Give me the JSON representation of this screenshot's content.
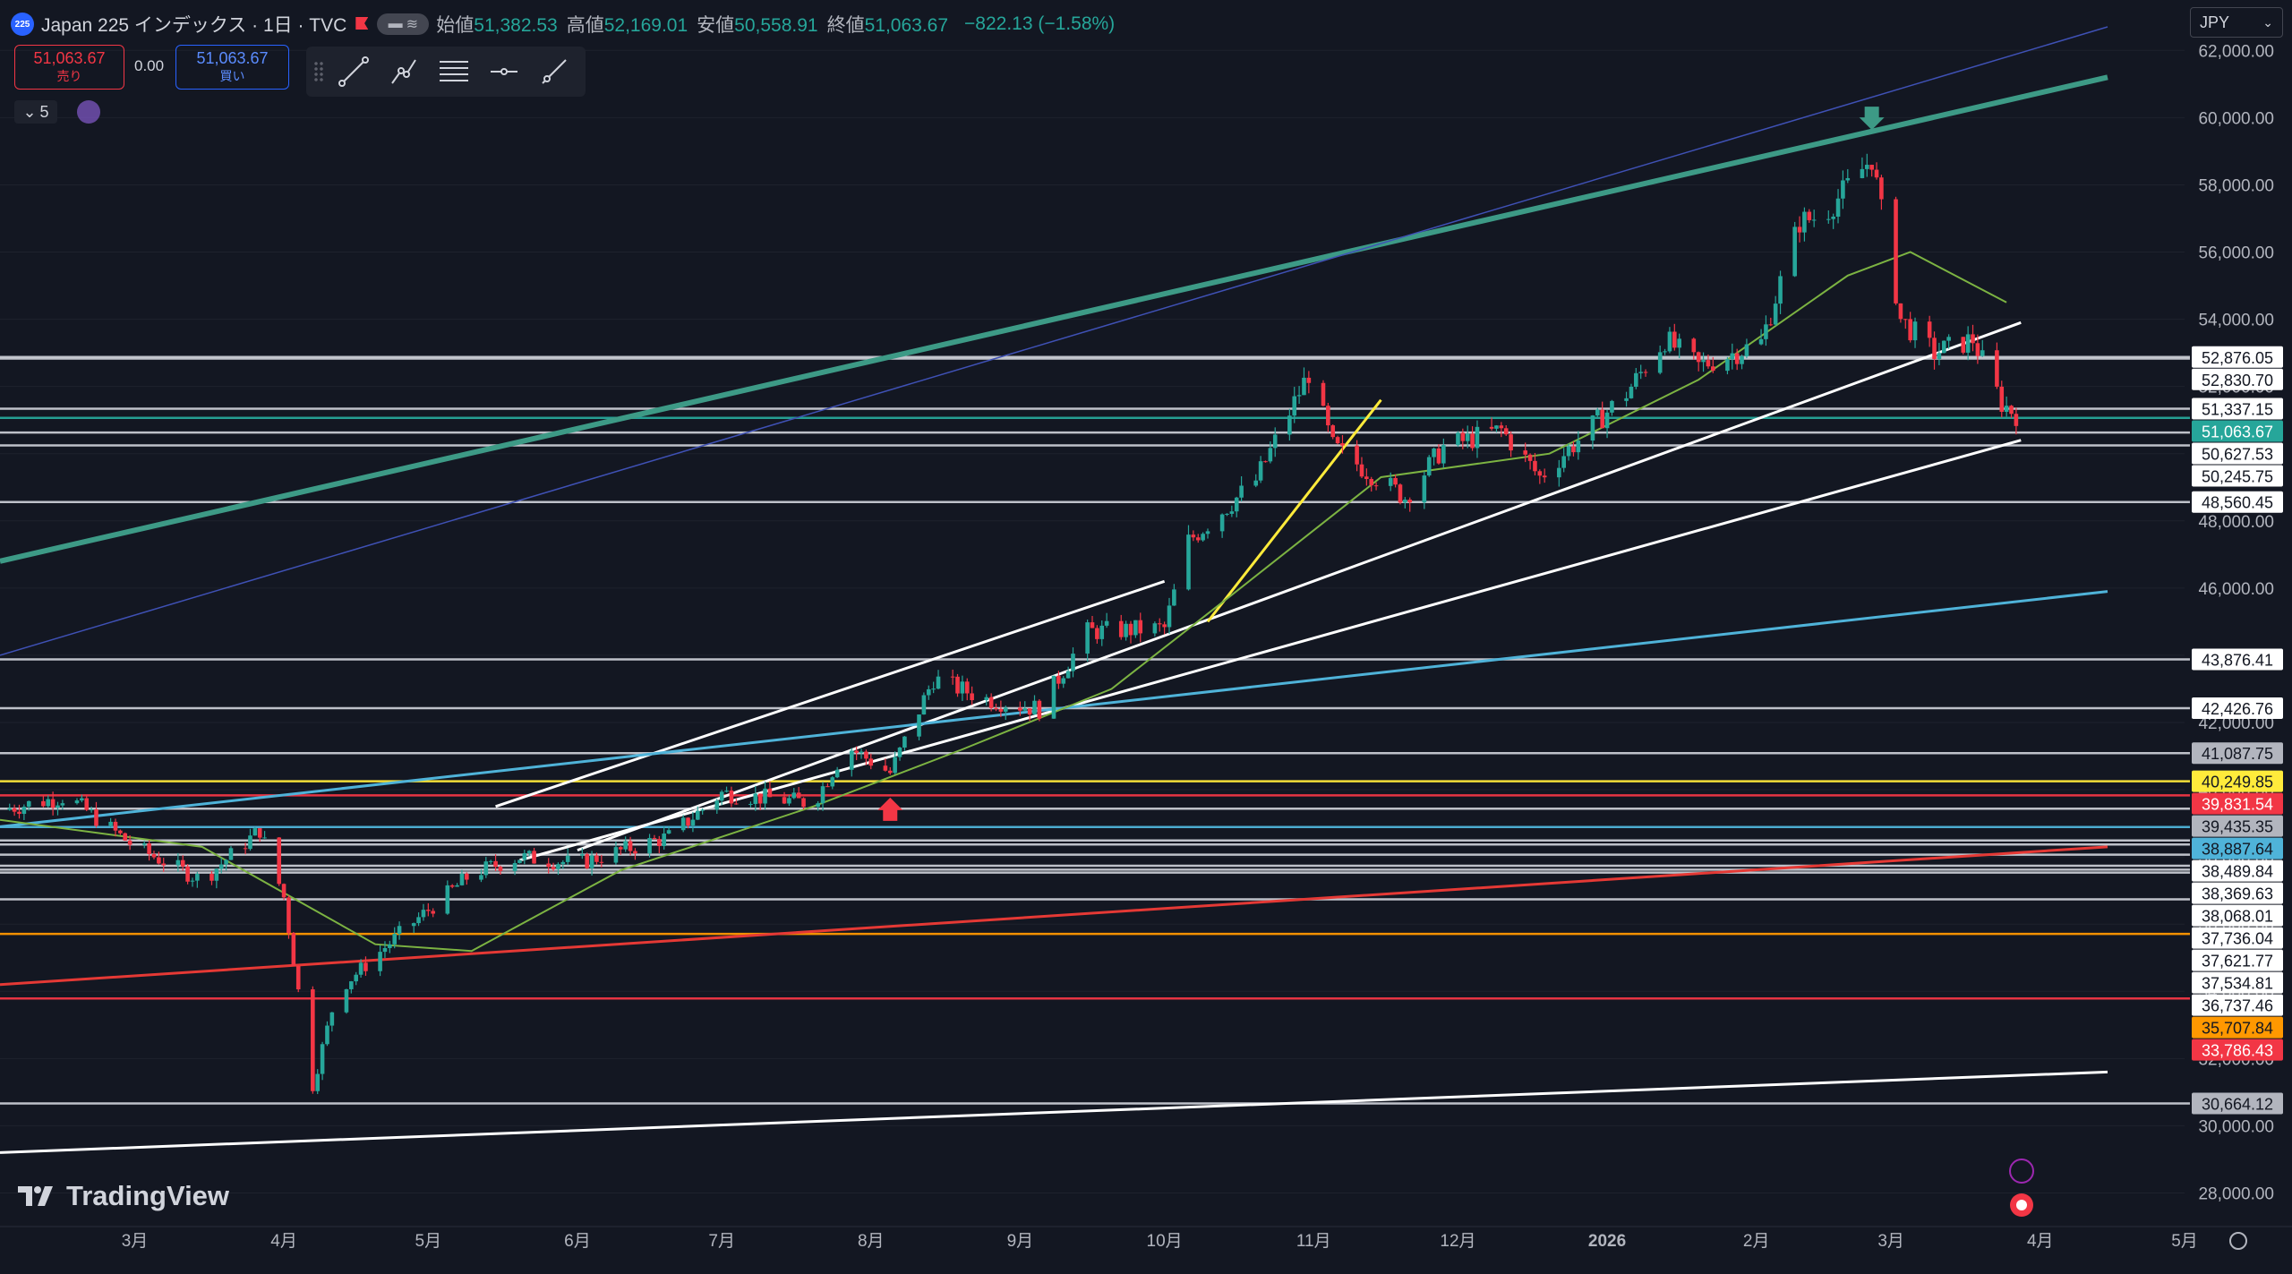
{
  "header": {
    "symbol_badge": "225",
    "title": "Japan 225 インデックス · 1日 · TVC",
    "ohlc": [
      {
        "label": "始値",
        "value": "51,382.53"
      },
      {
        "label": "高値",
        "value": "52,169.01"
      },
      {
        "label": "安値",
        "value": "50,558.91"
      },
      {
        "label": "終値",
        "value": "51,063.67"
      }
    ],
    "change": "−822.13 (−1.58%)"
  },
  "trade": {
    "sell_price": "51,063.67",
    "sell_label": "売り",
    "spread": "0.00",
    "buy_price": "51,063.67",
    "buy_label": "買い"
  },
  "indicator_count": "5",
  "currency": "JPY",
  "logo_text": "TradingView",
  "colors": {
    "background": "#131722",
    "up": "#26a69a",
    "down": "#f23645",
    "ma": "#7cb342",
    "channel": "#3d9a86",
    "trend_blue": "#3f51b5",
    "cyan": "#4fb3d9",
    "red_line": "#e53935",
    "orange": "#ff9800",
    "yellow": "#ffeb3b"
  },
  "chart_data": {
    "type": "candlestick",
    "instrument": "Japan 225 インデックス",
    "interval": "1日",
    "ylim": [
      27000,
      63500
    ],
    "y_ticks": [
      28000,
      30000,
      32000,
      34000,
      36000,
      38000,
      40000,
      42000,
      44000,
      46000,
      48000,
      50000,
      52000,
      54000,
      56000,
      58000,
      60000,
      62000
    ],
    "x_ticks": [
      {
        "label": "3月",
        "date": "2025-03-01"
      },
      {
        "label": "4月",
        "date": "2025-04-01"
      },
      {
        "label": "5月",
        "date": "2025-05-01"
      },
      {
        "label": "6月",
        "date": "2025-06-01"
      },
      {
        "label": "7月",
        "date": "2025-07-01"
      },
      {
        "label": "8月",
        "date": "2025-08-01"
      },
      {
        "label": "9月",
        "date": "2025-09-01"
      },
      {
        "label": "10月",
        "date": "2025-10-01"
      },
      {
        "label": "11月",
        "date": "2025-11-01"
      },
      {
        "label": "12月",
        "date": "2025-12-01"
      },
      {
        "label": "2026",
        "date": "2026-01-01"
      },
      {
        "label": "2月",
        "date": "2026-02-01"
      },
      {
        "label": "3月",
        "date": "2026-03-01"
      },
      {
        "label": "4月",
        "date": "2026-04-01"
      },
      {
        "label": "5月",
        "date": "2026-05-01"
      }
    ],
    "x_range": [
      "2025-02-01",
      "2026-05-01"
    ],
    "price_path": [
      {
        "date": "2025-02-01",
        "close": 39400
      },
      {
        "date": "2025-02-15",
        "close": 39800
      },
      {
        "date": "2025-03-01",
        "close": 38300
      },
      {
        "date": "2025-03-15",
        "close": 37300
      },
      {
        "date": "2025-03-27",
        "close": 38800
      },
      {
        "date": "2025-04-01",
        "close": 36800
      },
      {
        "date": "2025-04-07",
        "close": 31200
      },
      {
        "date": "2025-04-12",
        "close": 34000
      },
      {
        "date": "2025-04-25",
        "close": 35700
      },
      {
        "date": "2025-05-10",
        "close": 37500
      },
      {
        "date": "2025-05-20",
        "close": 38000
      },
      {
        "date": "2025-06-01",
        "close": 37800
      },
      {
        "date": "2025-06-20",
        "close": 38600
      },
      {
        "date": "2025-07-01",
        "close": 39900
      },
      {
        "date": "2025-07-20",
        "close": 39600
      },
      {
        "date": "2025-07-27",
        "close": 41300
      },
      {
        "date": "2025-08-05",
        "close": 40500
      },
      {
        "date": "2025-08-14",
        "close": 43300
      },
      {
        "date": "2025-08-25",
        "close": 42700
      },
      {
        "date": "2025-09-05",
        "close": 42400
      },
      {
        "date": "2025-09-15",
        "close": 44700
      },
      {
        "date": "2025-10-01",
        "close": 44800
      },
      {
        "date": "2025-10-06",
        "close": 47400
      },
      {
        "date": "2025-10-20",
        "close": 49200
      },
      {
        "date": "2025-10-31",
        "close": 52400
      },
      {
        "date": "2025-11-05",
        "close": 50200
      },
      {
        "date": "2025-11-20",
        "close": 48700
      },
      {
        "date": "2025-11-28",
        "close": 50200
      },
      {
        "date": "2025-12-10",
        "close": 50700
      },
      {
        "date": "2025-12-18",
        "close": 49300
      },
      {
        "date": "2026-01-05",
        "close": 51800
      },
      {
        "date": "2026-01-13",
        "close": 53400
      },
      {
        "date": "2026-01-20",
        "close": 52600
      },
      {
        "date": "2026-02-02",
        "close": 53300
      },
      {
        "date": "2026-02-10",
        "close": 56900
      },
      {
        "date": "2026-02-15",
        "close": 57100
      },
      {
        "date": "2026-02-25",
        "close": 58800
      },
      {
        "date": "2026-03-03",
        "close": 54000
      },
      {
        "date": "2026-03-10",
        "close": 53000
      },
      {
        "date": "2026-03-18",
        "close": 53400
      },
      {
        "date": "2026-03-24",
        "close": 51500
      },
      {
        "date": "2026-03-28",
        "close": 51063.67
      }
    ],
    "moving_average": [
      {
        "date": "2025-02-01",
        "value": 39100
      },
      {
        "date": "2025-03-15",
        "value": 38300
      },
      {
        "date": "2025-04-20",
        "value": 35400
      },
      {
        "date": "2025-05-10",
        "value": 35200
      },
      {
        "date": "2025-06-10",
        "value": 37600
      },
      {
        "date": "2025-07-20",
        "value": 39500
      },
      {
        "date": "2025-08-20",
        "value": 41200
      },
      {
        "date": "2025-09-20",
        "value": 43000
      },
      {
        "date": "2025-10-15",
        "value": 45800
      },
      {
        "date": "2025-11-15",
        "value": 49300
      },
      {
        "date": "2025-12-20",
        "value": 50000
      },
      {
        "date": "2026-01-20",
        "value": 52200
      },
      {
        "date": "2026-02-20",
        "value": 55300
      },
      {
        "date": "2026-03-05",
        "value": 56000
      },
      {
        "date": "2026-03-25",
        "value": 54500
      }
    ],
    "horizontal_levels": [
      {
        "value": 52876.05,
        "label": "52,876.05",
        "bg": "#ffffff",
        "fg": "#131722"
      },
      {
        "value": 52830.7,
        "label": "52,830.70",
        "bg": "#ffffff",
        "fg": "#131722"
      },
      {
        "value": 51337.15,
        "label": "51,337.15",
        "bg": "#ffffff",
        "fg": "#131722"
      },
      {
        "value": 51063.67,
        "label": "51,063.67",
        "bg": "#26a69a",
        "fg": "#ffffff"
      },
      {
        "value": 50627.53,
        "label": "50,627.53",
        "bg": "#ffffff",
        "fg": "#131722"
      },
      {
        "value": 50245.75,
        "label": "50,245.75",
        "bg": "#ffffff",
        "fg": "#131722"
      },
      {
        "value": 48560.45,
        "label": "48,560.45",
        "bg": "#ffffff",
        "fg": "#131722"
      },
      {
        "value": 43876.41,
        "label": "43,876.41",
        "bg": "#ffffff",
        "fg": "#131722"
      },
      {
        "value": 42426.76,
        "label": "42,426.76",
        "bg": "#ffffff",
        "fg": "#131722"
      },
      {
        "value": 41087.75,
        "label": "41,087.75",
        "bg": "#b2b5be",
        "fg": "#131722"
      },
      {
        "value": 40249.85,
        "label": "40,249.85",
        "bg": "#ffeb3b",
        "fg": "#131722"
      },
      {
        "value": 39831.54,
        "label": "39,831.54",
        "bg": "#f23645",
        "fg": "#ffffff"
      },
      {
        "value": 39435.35,
        "label": "39,435.35",
        "bg": "#b2b5be",
        "fg": "#131722"
      },
      {
        "value": 38887.64,
        "label": "38,887.64",
        "bg": "#4fb3d9",
        "fg": "#131722"
      },
      {
        "value": 38489.84,
        "label": "38,489.84",
        "bg": "#ffffff",
        "fg": "#131722"
      },
      {
        "value": 38369.63,
        "label": "38,369.63",
        "bg": "#ffffff",
        "fg": "#131722"
      },
      {
        "value": 38068.01,
        "label": "38,068.01",
        "bg": "#ffffff",
        "fg": "#131722"
      },
      {
        "value": 37736.04,
        "label": "37,736.04",
        "bg": "#ffffff",
        "fg": "#131722"
      },
      {
        "value": 37621.77,
        "label": "37,621.77",
        "bg": "#ffffff",
        "fg": "#131722"
      },
      {
        "value": 37534.81,
        "label": "37,534.81",
        "bg": "#ffffff",
        "fg": "#131722"
      },
      {
        "value": 36737.46,
        "label": "36,737.46",
        "bg": "#ffffff",
        "fg": "#131722"
      },
      {
        "value": 35707.84,
        "label": "35,707.84",
        "bg": "#ff9800",
        "fg": "#131722"
      },
      {
        "value": 33786.43,
        "label": "33,786.43",
        "bg": "#f23645",
        "fg": "#ffffff"
      },
      {
        "value": 30664.12,
        "label": "30,664.12",
        "bg": "#b2b5be",
        "fg": "#131722"
      }
    ],
    "trend_lines": [
      {
        "name": "channel-upper",
        "from": {
          "date": "2025-02-01",
          "price": 46800
        },
        "to": {
          "date": "2026-04-15",
          "price": 61200
        },
        "color": "#3d9a86"
      },
      {
        "name": "blue-upper",
        "from": {
          "date": "2025-02-01",
          "price": 44000
        },
        "to": {
          "date": "2026-04-15",
          "price": 62700
        },
        "color": "#3f51b5"
      },
      {
        "name": "white-support-1",
        "from": {
          "date": "2025-06-01",
          "price": 38200
        },
        "to": {
          "date": "2026-03-28",
          "price": 53900
        },
        "color": "#ffffff"
      },
      {
        "name": "white-support-2",
        "from": {
          "date": "2025-05-15",
          "price": 39500
        },
        "to": {
          "date": "2025-10-01",
          "price": 46200
        },
        "color": "#ffffff"
      },
      {
        "name": "white-lower",
        "from": {
          "date": "2025-05-20",
          "price": 37900
        },
        "to": {
          "date": "2026-03-28",
          "price": 50400
        },
        "color": "#ffffff"
      },
      {
        "name": "cyan-line",
        "from": {
          "date": "2025-02-01",
          "price": 38900
        },
        "to": {
          "date": "2026-04-15",
          "price": 45900
        },
        "color": "#4fb3d9"
      },
      {
        "name": "red-line",
        "from": {
          "date": "2025-02-01",
          "price": 34200
        },
        "to": {
          "date": "2026-04-15",
          "price": 38300
        },
        "color": "#e53935"
      },
      {
        "name": "white-long",
        "from": {
          "date": "2025-02-01",
          "price": 29200
        },
        "to": {
          "date": "2026-04-15",
          "price": 31600
        },
        "color": "#ffffff"
      },
      {
        "name": "yellow-run",
        "from": {
          "date": "2025-10-10",
          "price": 45000
        },
        "to": {
          "date": "2025-11-15",
          "price": 51600
        },
        "color": "#ffeb3b"
      }
    ],
    "markers": [
      {
        "type": "arrow-down",
        "date": "2026-02-25",
        "price": 59900,
        "color": "#3d9a86"
      },
      {
        "type": "arrow-up",
        "date": "2025-08-05",
        "price": 39500,
        "color": "#f23645"
      }
    ]
  }
}
